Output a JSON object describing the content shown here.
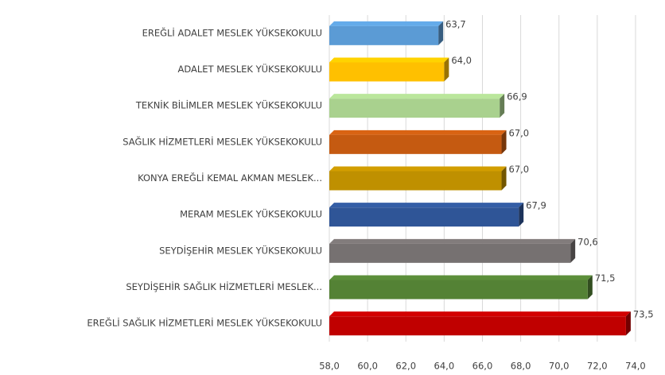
{
  "chart_data": {
    "type": "bar",
    "orientation": "horizontal",
    "categories": [
      "EREĞLİ ADALET MESLEK YÜKSEKOKULU",
      "ADALET MESLEK YÜKSEKOKULU",
      "TEKNİK BİLİMLER MESLEK YÜKSEKOKULU",
      "SAĞLIK HİZMETLERİ MESLEK YÜKSEKOKULU",
      "KONYA EREĞLİ KEMAL AKMAN MESLEK...",
      "MERAM MESLEK YÜKSEKOKULU",
      "SEYDİŞEHİR MESLEK YÜKSEKOKULU",
      "SEYDİŞEHİR SAĞLIK HİZMETLERİ MESLEK...",
      "EREĞLİ SAĞLIK HİZMETLERİ MESLEK YÜKSEKOKULU"
    ],
    "values": [
      63.7,
      64.0,
      66.9,
      67.0,
      67.0,
      67.9,
      70.6,
      71.5,
      73.5
    ],
    "value_labels": [
      "63,7",
      "64,0",
      "66,9",
      "67,0",
      "67,0",
      "67,9",
      "70,6",
      "71,5",
      "73,5"
    ],
    "colors": [
      "#5b9bd5",
      "#ffc000",
      "#a9d18e",
      "#c55a11",
      "#bf9000",
      "#2f5597",
      "#767171",
      "#548235",
      "#c00000"
    ],
    "xlim": [
      58,
      75
    ],
    "xticks": [
      {
        "value": 58,
        "label": "58,0"
      },
      {
        "value": 60,
        "label": "60,0"
      },
      {
        "value": 62,
        "label": "62,0"
      },
      {
        "value": 64,
        "label": "64,0"
      },
      {
        "value": 66,
        "label": "66,0"
      },
      {
        "value": 68,
        "label": "68,0"
      },
      {
        "value": 70,
        "label": "70,0"
      },
      {
        "value": 72,
        "label": "72,0"
      },
      {
        "value": 74,
        "label": "74,0"
      }
    ],
    "grid": true
  }
}
